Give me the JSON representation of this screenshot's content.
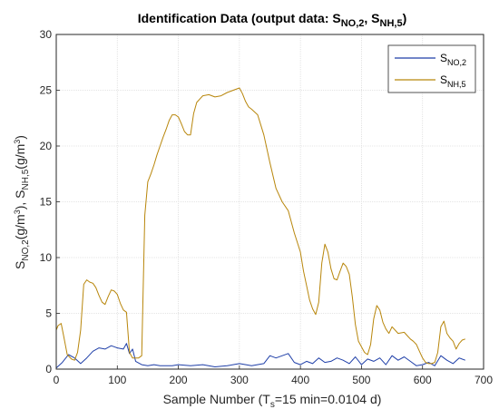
{
  "chart_data": {
    "type": "line",
    "title": {
      "main": "Identification Data (output data: S",
      "sub1": "NO,2",
      "sep": ", S",
      "sub2": "NH,5",
      "end": ")"
    },
    "xlabel": {
      "main": "Sample Number (T",
      "sub": "s",
      "rest": "=15 min=0.0104 d)"
    },
    "ylabel": {
      "p1": "S",
      "sub1": "NO,2",
      "p2": "(g/m",
      "sup1": "3",
      "p3": "),  S",
      "sub2": "NH,5",
      "p4": "(g/m",
      "sup2": "3",
      "p5": ")"
    },
    "xlim": [
      0,
      700
    ],
    "ylim": [
      0,
      30
    ],
    "xticks": [
      0,
      100,
      200,
      300,
      400,
      500,
      600,
      700
    ],
    "yticks": [
      0,
      5,
      10,
      15,
      20,
      25,
      30
    ],
    "grid": true,
    "legend_position": "top-right",
    "series": [
      {
        "label_main": "S",
        "label_sub": "NO,2",
        "color": "#1f3fa8",
        "x": [
          0,
          10,
          20,
          30,
          40,
          50,
          60,
          70,
          80,
          90,
          100,
          110,
          115,
          120,
          125,
          130,
          140,
          150,
          160,
          170,
          180,
          190,
          200,
          220,
          240,
          260,
          280,
          300,
          320,
          340,
          350,
          360,
          380,
          390,
          400,
          410,
          420,
          430,
          440,
          450,
          460,
          470,
          480,
          490,
          500,
          510,
          520,
          530,
          540,
          550,
          560,
          570,
          580,
          590,
          600,
          610,
          620,
          630,
          640,
          650,
          660,
          670
        ],
        "y": [
          0.1,
          0.6,
          1.3,
          1.0,
          0.5,
          1.0,
          1.6,
          1.9,
          1.8,
          2.1,
          1.9,
          1.8,
          2.3,
          1.4,
          1.8,
          0.7,
          0.4,
          0.3,
          0.4,
          0.3,
          0.3,
          0.3,
          0.4,
          0.3,
          0.4,
          0.2,
          0.3,
          0.5,
          0.3,
          0.5,
          1.2,
          1.0,
          1.4,
          0.6,
          0.4,
          0.7,
          0.5,
          1.0,
          0.6,
          0.7,
          1.0,
          0.8,
          0.5,
          1.1,
          0.4,
          0.9,
          0.7,
          1.0,
          0.4,
          1.2,
          0.8,
          1.1,
          0.7,
          0.3,
          0.4,
          0.6,
          0.3,
          1.2,
          0.8,
          0.5,
          1.0,
          0.8
        ]
      },
      {
        "label_main": "S",
        "label_sub": "NH,5",
        "color": "#b8860b",
        "x": [
          0,
          3,
          8,
          12,
          18,
          25,
          30,
          35,
          40,
          45,
          50,
          55,
          60,
          65,
          70,
          75,
          80,
          85,
          90,
          95,
          100,
          105,
          110,
          115,
          120,
          125,
          130,
          135,
          140,
          145,
          150,
          155,
          160,
          165,
          170,
          175,
          180,
          185,
          190,
          195,
          200,
          205,
          210,
          215,
          220,
          225,
          230,
          235,
          240,
          250,
          260,
          270,
          280,
          290,
          300,
          305,
          310,
          315,
          320,
          330,
          340,
          350,
          360,
          370,
          380,
          390,
          400,
          405,
          410,
          415,
          420,
          425,
          430,
          435,
          440,
          445,
          450,
          455,
          460,
          465,
          470,
          475,
          480,
          485,
          490,
          495,
          500,
          505,
          510,
          515,
          520,
          525,
          530,
          535,
          540,
          545,
          550,
          560,
          570,
          575,
          580,
          585,
          590,
          595,
          600,
          605,
          610,
          615,
          620,
          625,
          630,
          635,
          640,
          645,
          650,
          655,
          660,
          665,
          670
        ],
        "y": [
          3.5,
          3.9,
          4.1,
          3.0,
          1.3,
          0.9,
          0.8,
          1.5,
          3.5,
          7.6,
          8.0,
          7.8,
          7.7,
          7.3,
          6.6,
          6.0,
          5.8,
          6.5,
          7.1,
          7.0,
          6.7,
          5.9,
          5.3,
          5.1,
          1.5,
          1.0,
          1.0,
          1.0,
          1.2,
          13.8,
          16.8,
          17.5,
          18.3,
          19.2,
          20.0,
          20.8,
          21.5,
          22.3,
          22.8,
          22.8,
          22.6,
          22.0,
          21.3,
          21.0,
          21.0,
          22.9,
          23.9,
          24.2,
          24.5,
          24.6,
          24.4,
          24.5,
          24.8,
          25.0,
          25.2,
          24.7,
          24.0,
          23.5,
          23.3,
          22.8,
          21.0,
          18.5,
          16.2,
          15.0,
          14.2,
          12.2,
          10.5,
          8.8,
          7.5,
          6.2,
          5.4,
          4.9,
          6.0,
          9.5,
          11.2,
          10.5,
          9.0,
          8.1,
          8.0,
          8.8,
          9.5,
          9.2,
          8.5,
          6.5,
          4.0,
          2.5,
          2.0,
          1.5,
          1.3,
          2.2,
          4.5,
          5.7,
          5.3,
          4.2,
          3.6,
          3.2,
          3.8,
          3.2,
          3.3,
          3.0,
          2.7,
          2.5,
          2.2,
          1.6,
          1.0,
          0.6,
          0.5,
          0.5,
          0.6,
          1.5,
          3.8,
          4.3,
          3.2,
          2.8,
          2.5,
          1.8,
          2.3,
          2.6,
          2.7
        ]
      }
    ]
  }
}
